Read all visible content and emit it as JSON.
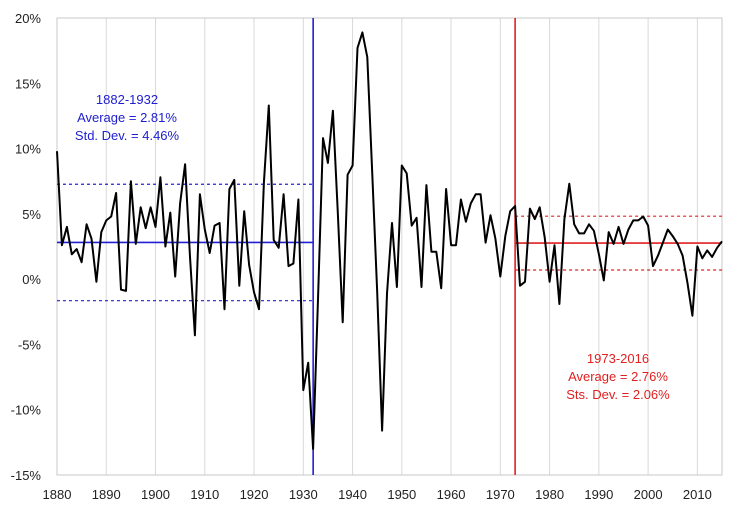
{
  "chart_data": {
    "type": "line",
    "title": "",
    "xlabel": "",
    "ylabel": "",
    "xlim": [
      1880,
      2015
    ],
    "ylim": [
      -15,
      20
    ],
    "grid": "vertical",
    "x_ticks": [
      1880,
      1890,
      1900,
      1910,
      1920,
      1930,
      1940,
      1950,
      1960,
      1970,
      1980,
      1990,
      2000,
      2010
    ],
    "x_tick_labels": [
      "1880",
      "1890",
      "1900",
      "1910",
      "1920",
      "1930",
      "1940",
      "1950",
      "1960",
      "1970",
      "1980",
      "1990",
      "2000",
      "2010"
    ],
    "y_ticks": [
      -15,
      -10,
      -5,
      0,
      5,
      10,
      15,
      20
    ],
    "y_tick_labels": [
      "-15%",
      "-10%",
      "-5%",
      "0%",
      "5%",
      "10%",
      "15%",
      "20%"
    ],
    "series": [
      {
        "color": "#000000",
        "x": [
          1880,
          1881,
          1882,
          1883,
          1884,
          1885,
          1886,
          1887,
          1888,
          1889,
          1890,
          1891,
          1892,
          1893,
          1894,
          1895,
          1896,
          1897,
          1898,
          1899,
          1900,
          1901,
          1902,
          1903,
          1904,
          1905,
          1906,
          1907,
          1908,
          1909,
          1910,
          1911,
          1912,
          1913,
          1914,
          1915,
          1916,
          1917,
          1918,
          1919,
          1920,
          1921,
          1922,
          1923,
          1924,
          1925,
          1926,
          1927,
          1928,
          1929,
          1930,
          1931,
          1932,
          1933,
          1934,
          1935,
          1936,
          1937,
          1938,
          1939,
          1940,
          1941,
          1942,
          1943,
          1944,
          1945,
          1946,
          1947,
          1948,
          1949,
          1950,
          1951,
          1952,
          1953,
          1954,
          1955,
          1956,
          1957,
          1958,
          1959,
          1960,
          1961,
          1962,
          1963,
          1964,
          1965,
          1966,
          1967,
          1968,
          1969,
          1970,
          1971,
          1972,
          1973,
          1974,
          1975,
          1976,
          1977,
          1978,
          1979,
          1980,
          1981,
          1982,
          1983,
          1984,
          1985,
          1986,
          1987,
          1988,
          1989,
          1990,
          1991,
          1992,
          1993,
          1994,
          1995,
          1996,
          1997,
          1998,
          1999,
          2000,
          2001,
          2002,
          2003,
          2004,
          2005,
          2006,
          2007,
          2008,
          2009,
          2010,
          2011,
          2012,
          2013,
          2014,
          2015
        ],
        "values": [
          9.8,
          2.6,
          4.0,
          1.9,
          2.3,
          1.3,
          4.2,
          3.1,
          -0.2,
          3.6,
          4.5,
          4.8,
          6.6,
          -0.8,
          -0.9,
          7.5,
          2.7,
          5.5,
          3.9,
          5.5,
          4.0,
          7.8,
          2.5,
          5.1,
          0.2,
          5.8,
          8.8,
          1.7,
          -4.3,
          6.5,
          3.8,
          2.0,
          4.1,
          4.3,
          -2.3,
          6.9,
          7.6,
          -0.5,
          5.2,
          1.1,
          -1.0,
          -2.3,
          7.4,
          13.3,
          3.0,
          2.4,
          6.5,
          1.0,
          1.2,
          6.1,
          -8.5,
          -6.4,
          -13.0,
          -1.3,
          10.8,
          8.9,
          12.9,
          5.1,
          -3.3,
          8.0,
          8.7,
          17.7,
          18.9,
          17.0,
          8.0,
          -1.0,
          -11.6,
          -1.1,
          4.3,
          -0.6,
          8.7,
          8.1,
          4.1,
          4.7,
          -0.6,
          7.2,
          2.1,
          2.1,
          -0.7,
          6.9,
          2.6,
          2.6,
          6.1,
          4.4,
          5.8,
          6.5,
          6.5,
          2.8,
          4.9,
          3.1,
          0.2,
          3.3,
          5.2,
          5.6,
          -0.5,
          -0.2,
          5.4,
          4.6,
          5.5,
          3.2,
          -0.2,
          2.6,
          -1.9,
          4.6,
          7.3,
          4.2,
          3.5,
          3.5,
          4.2,
          3.7,
          1.9,
          -0.1,
          3.6,
          2.7,
          4.0,
          2.7,
          3.8,
          4.5,
          4.5,
          4.8,
          4.1,
          1.0,
          1.8,
          2.8,
          3.8,
          3.3,
          2.7,
          1.8,
          -0.3,
          -2.8,
          2.5,
          1.6,
          2.2,
          1.7,
          2.4,
          2.9
        ]
      }
    ],
    "annotations": [
      {
        "color": "#2020d0",
        "x": 1932,
        "start_year": 1882,
        "end_year": 1932,
        "mean": 2.81,
        "std": 4.46,
        "label_lines": [
          "1882-1932",
          "Average = 2.81%",
          "Std. Dev. = 4.46%"
        ]
      },
      {
        "color": "#e02020",
        "x": 1973,
        "start_year": 1973,
        "end_year": 2016,
        "mean": 2.76,
        "std": 2.06,
        "label_lines": [
          "1973-2016",
          "Average = 2.76%",
          "Sts. Dev. = 2.06%"
        ]
      }
    ]
  }
}
